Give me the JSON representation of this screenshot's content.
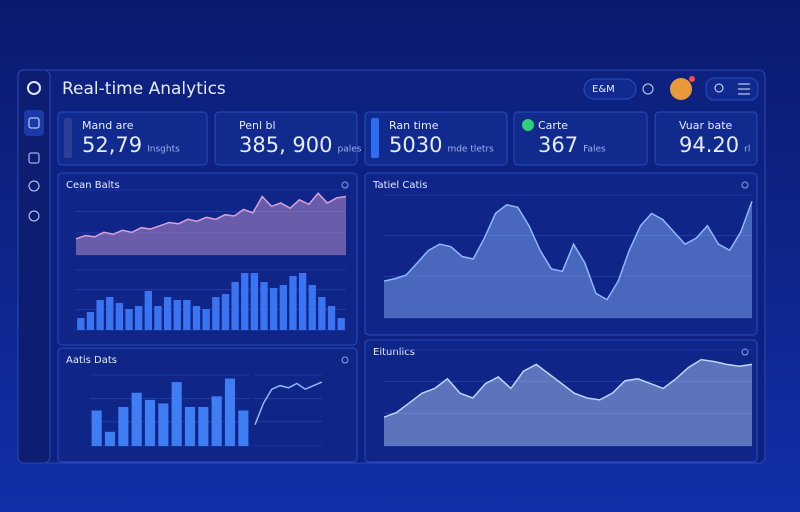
{
  "header": {
    "title": "Real-time Analytics",
    "user": "E&M"
  },
  "kpis": [
    {
      "label": "Mand are",
      "value": "52,79",
      "unit": "Insghts"
    },
    {
      "label": "Penl bl",
      "value": "385, 900",
      "unit": "pales"
    },
    {
      "label": "Ran time",
      "value": "5030",
      "unit": "mde tletrs"
    },
    {
      "label": "Carte",
      "value": "367",
      "unit": "Fales"
    },
    {
      "label": "Vuar bate",
      "value": "94.20",
      "unit": "rl"
    }
  ],
  "panels": [
    {
      "title": "Cean Balts",
      "charts": [
        {
          "type": "area",
          "color": "#d8a0d8",
          "ylim": [
            0,
            100
          ],
          "values": [
            25,
            30,
            28,
            35,
            32,
            38,
            35,
            42,
            40,
            45,
            50,
            48,
            55,
            52,
            58,
            55,
            62,
            60,
            70,
            65,
            90,
            75,
            80,
            72,
            85,
            78,
            95,
            80,
            88,
            90
          ]
        },
        {
          "type": "bar",
          "color": "#3a74f0",
          "ylim": [
            0,
            100
          ],
          "values": [
            20,
            30,
            50,
            55,
            45,
            35,
            40,
            65,
            40,
            55,
            50,
            50,
            40,
            35,
            55,
            60,
            80,
            95,
            95,
            80,
            70,
            75,
            90,
            95,
            75,
            55,
            40,
            20
          ]
        }
      ]
    },
    {
      "title": "Tatiel Catis",
      "charts": [
        {
          "type": "area",
          "color": "#8fb8ff",
          "ylim": [
            0,
            100
          ],
          "values": [
            30,
            32,
            35,
            45,
            55,
            60,
            58,
            50,
            48,
            65,
            85,
            92,
            90,
            75,
            55,
            40,
            38,
            60,
            45,
            20,
            15,
            30,
            55,
            75,
            85,
            80,
            70,
            60,
            65,
            75,
            60,
            55,
            70,
            95
          ]
        }
      ]
    },
    {
      "title": "Aatis Dats",
      "charts": [
        {
          "type": "bar",
          "color": "#3f7ef2",
          "ylim": [
            0,
            100
          ],
          "values": [
            50,
            20,
            55,
            75,
            65,
            60,
            90,
            55,
            55,
            70,
            95,
            50
          ]
        },
        {
          "type": "line",
          "color": "#8fb8ff",
          "ylim": [
            0,
            100
          ],
          "values": [
            30,
            60,
            80,
            85,
            82,
            88,
            80,
            85,
            90
          ]
        }
      ]
    },
    {
      "title": "Eitunlics",
      "charts": [
        {
          "type": "area",
          "color": "#bcd4ff",
          "ylim": [
            0,
            100
          ],
          "values": [
            30,
            35,
            45,
            55,
            60,
            70,
            55,
            50,
            65,
            72,
            60,
            78,
            85,
            75,
            65,
            55,
            50,
            48,
            55,
            68,
            70,
            65,
            60,
            70,
            82,
            90,
            88,
            85,
            83,
            85
          ]
        }
      ]
    }
  ]
}
